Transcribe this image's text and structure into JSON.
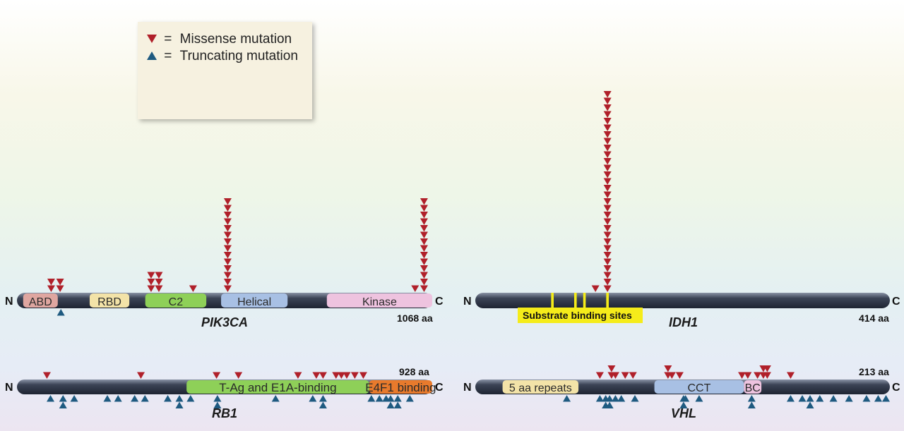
{
  "legend": {
    "eq": "=",
    "missense_label": "Missense mutation",
    "truncating_label": "Truncating mutation"
  },
  "colors": {
    "missense": "#b0202a",
    "truncating": "#1e5a80",
    "backbone": "#323a4a"
  },
  "proteins": {
    "pik3ca": {
      "gene": "PIK3CA",
      "length": 1068,
      "length_label": "1068 aa",
      "n_label": "N",
      "c_label": "C",
      "domains": [
        {
          "name": "ABD",
          "start": 16,
          "end": 105,
          "fill": "#dfa6a0"
        },
        {
          "name": "RBD",
          "start": 187,
          "end": 289,
          "fill": "#f3e3a8"
        },
        {
          "name": "C2",
          "start": 330,
          "end": 487,
          "fill": "#8ed058"
        },
        {
          "name": "Helical",
          "start": 525,
          "end": 696,
          "fill": "#a8c0e4"
        },
        {
          "name": "Kinase",
          "start": 797,
          "end": 1068,
          "fill": "#eec3df"
        }
      ],
      "missense": [
        [
          88,
          2
        ],
        [
          111,
          2
        ],
        [
          345,
          3
        ],
        [
          365,
          3
        ],
        [
          453,
          1
        ],
        [
          542,
          14
        ],
        [
          1047,
          14
        ],
        [
          1024,
          1
        ]
      ],
      "truncating": [
        [
          113,
          1
        ]
      ]
    },
    "idh1": {
      "gene": "IDH1",
      "length": 414,
      "length_label": "414 aa",
      "n_label": "N",
      "c_label": "C",
      "substrate_label": "Substrate binding sites",
      "sites": [
        77,
        100,
        109,
        132
      ],
      "missense": [
        [
          132,
          30
        ],
        [
          120,
          1
        ]
      ],
      "truncating": []
    },
    "rb1": {
      "gene": "RB1",
      "length": 928,
      "length_label": "928 aa",
      "n_label": "N",
      "c_label": "C",
      "domains": [
        {
          "name": "T-Ag and E1A-binding",
          "start": 379,
          "end": 787,
          "fill": "#8ed058"
        },
        {
          "name": "E4F1 binding",
          "start": 787,
          "end": 928,
          "fill": "#e87a2c"
        }
      ],
      "missense": [
        [
          67,
          1
        ],
        [
          277,
          1
        ],
        [
          446,
          1
        ],
        [
          495,
          1
        ],
        [
          628,
          1
        ],
        [
          669,
          1
        ],
        [
          684,
          1
        ],
        [
          713,
          1
        ],
        [
          725,
          1
        ],
        [
          737,
          1
        ],
        [
          755,
          1
        ],
        [
          774,
          1
        ]
      ],
      "truncating": [
        [
          75,
          1
        ],
        [
          103,
          2
        ],
        [
          128,
          1
        ],
        [
          202,
          1
        ],
        [
          226,
          1
        ],
        [
          263,
          1
        ],
        [
          286,
          1
        ],
        [
          337,
          1
        ],
        [
          363,
          2
        ],
        [
          388,
          1
        ],
        [
          448,
          2
        ],
        [
          578,
          1
        ],
        [
          661,
          1
        ],
        [
          684,
          2
        ],
        [
          792,
          1
        ],
        [
          810,
          1
        ],
        [
          825,
          1
        ],
        [
          835,
          2
        ],
        [
          851,
          2
        ],
        [
          878,
          1
        ]
      ]
    },
    "vhl": {
      "gene": "VHL",
      "length": 213,
      "length_label": "213 aa",
      "n_label": "N",
      "c_label": "C",
      "domains": [
        {
          "name": "5 aa repeats",
          "start": 14,
          "end": 53,
          "fill": "#f3e3a8"
        },
        {
          "name": "CCT",
          "start": 92,
          "end": 138,
          "fill": "#a8c0e4"
        },
        {
          "name": "BC",
          "start": 138,
          "end": 147,
          "fill": "#eec3df"
        }
      ],
      "missense": [
        [
          64,
          1
        ],
        [
          70,
          2
        ],
        [
          72,
          1
        ],
        [
          77,
          1
        ],
        [
          81,
          1
        ],
        [
          99,
          2
        ],
        [
          101,
          1
        ],
        [
          105,
          1
        ],
        [
          137,
          1
        ],
        [
          140,
          1
        ],
        [
          145,
          1
        ],
        [
          148,
          2
        ],
        [
          150,
          2
        ],
        [
          162,
          1
        ]
      ],
      "truncating": [
        [
          47,
          1
        ],
        [
          64,
          1
        ],
        [
          67,
          2
        ],
        [
          69,
          2
        ],
        [
          72,
          1
        ],
        [
          75,
          1
        ],
        [
          82,
          1
        ],
        [
          107,
          2
        ],
        [
          108,
          1
        ],
        [
          115,
          1
        ],
        [
          142,
          2
        ],
        [
          162,
          1
        ],
        [
          168,
          1
        ],
        [
          172,
          2
        ],
        [
          177,
          1
        ],
        [
          184,
          1
        ],
        [
          192,
          1
        ],
        [
          201,
          1
        ],
        [
          207,
          1
        ],
        [
          211,
          1
        ]
      ]
    }
  }
}
